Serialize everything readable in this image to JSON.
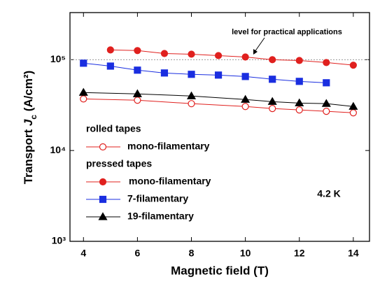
{
  "chart_data": {
    "type": "line",
    "ylabel_parts": [
      "Transport ",
      "J",
      "c",
      " (A/cm²)"
    ],
    "xlabel": "Magnetic field (T)",
    "xlim": [
      3.5,
      14.6
    ],
    "xticks": [
      4,
      6,
      8,
      10,
      12,
      14
    ],
    "ylim": [
      1000,
      330000
    ],
    "yscale": "log",
    "yticks": [
      {
        "value": 1000,
        "label": "10³"
      },
      {
        "value": 10000,
        "label": "10⁴"
      },
      {
        "value": 100000,
        "label": "10⁵"
      }
    ],
    "legend_headings": [
      "rolled tapes",
      "pressed tapes"
    ],
    "series": [
      {
        "name": "mono-filamentary",
        "color": "#e0201e",
        "marker": "circle-open",
        "x": [
          4,
          6,
          8,
          10,
          11,
          12,
          13,
          14
        ],
        "values": [
          37000,
          35800,
          32800,
          30500,
          29000,
          28000,
          27000,
          26000
        ]
      },
      {
        "name": "mono-filamentary",
        "color": "#e0201e",
        "marker": "circle",
        "x": [
          5,
          6,
          7,
          8,
          9,
          10,
          11,
          12,
          13,
          14
        ],
        "values": [
          128000,
          126000,
          117000,
          115000,
          111000,
          107000,
          100000,
          98000,
          93000,
          87000
        ]
      },
      {
        "name": "7-filamentary",
        "color": "#1a2ee0",
        "marker": "square",
        "x": [
          4,
          5,
          6,
          7,
          8,
          9,
          10,
          11,
          12,
          13
        ],
        "values": [
          91500,
          85000,
          76700,
          71400,
          69000,
          67700,
          65300,
          60900,
          57700,
          55700
        ]
      },
      {
        "name": "19-filamentary",
        "color": "#000000",
        "marker": "triangle",
        "x": [
          4,
          6,
          8,
          10,
          11,
          12,
          13,
          14
        ],
        "values": [
          43500,
          42000,
          39800,
          36400,
          34500,
          33300,
          32800,
          30500
        ]
      }
    ],
    "reference_line": {
      "value": 100000,
      "label": "level for practical applications",
      "color": "#999999"
    },
    "annotation": "4.2 K"
  }
}
